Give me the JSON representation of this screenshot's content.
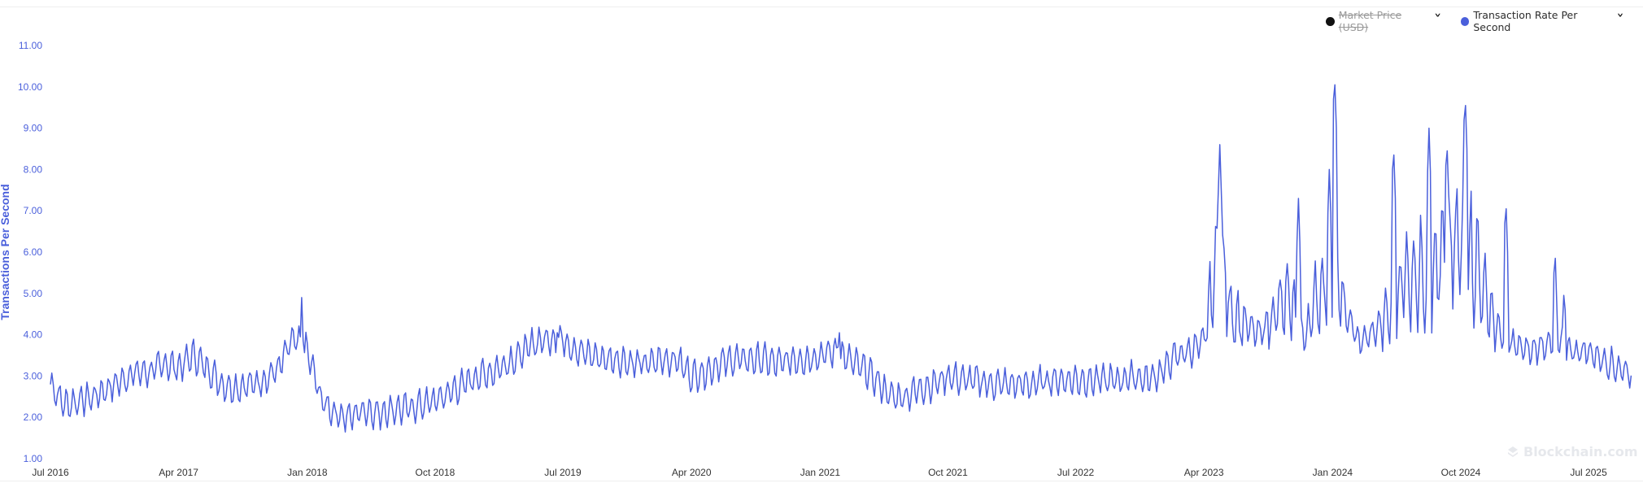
{
  "legend": {
    "items": [
      {
        "label": "Market Price (USD)",
        "color": "#111111",
        "hidden": true
      },
      {
        "label": "Transaction Rate Per Second",
        "color": "#4a5fdb",
        "hidden": false
      }
    ]
  },
  "watermark": "Blockchain.com",
  "chart_data": {
    "type": "line",
    "ylabel": "Transactions Per Second",
    "xlabel": "",
    "ylim": [
      1.0,
      11.0
    ],
    "yticks": [
      "1.00",
      "2.00",
      "3.00",
      "4.00",
      "5.00",
      "6.00",
      "7.00",
      "8.00",
      "9.00",
      "10.00",
      "11.00"
    ],
    "xlim": [
      "2016-07-01",
      "2025-10-01"
    ],
    "xticks": [
      "Jul 2016",
      "Apr 2017",
      "Jan 2018",
      "Oct 2018",
      "Jul 2019",
      "Apr 2020",
      "Jan 2021",
      "Oct 2021",
      "Jul 2022",
      "Apr 2023",
      "Jan 2024",
      "Oct 2024",
      "Jul 2025"
    ],
    "grid": false,
    "legend_position": "top-right",
    "series": [
      {
        "name": "Transaction Rate Per Second",
        "color": "#4a5fdb",
        "points": [
          [
            "2016-07-01",
            2.8
          ],
          [
            "2016-08-01",
            2.3
          ],
          [
            "2016-09-01",
            2.4
          ],
          [
            "2016-10-01",
            2.5
          ],
          [
            "2016-11-01",
            2.7
          ],
          [
            "2016-12-01",
            2.9
          ],
          [
            "2017-01-01",
            3.1
          ],
          [
            "2017-02-01",
            3.1
          ],
          [
            "2017-03-01",
            3.3
          ],
          [
            "2017-04-01",
            3.2
          ],
          [
            "2017-05-01",
            3.5
          ],
          [
            "2017-06-01",
            3.2
          ],
          [
            "2017-07-01",
            2.8
          ],
          [
            "2017-08-01",
            2.7
          ],
          [
            "2017-09-01",
            2.8
          ],
          [
            "2017-10-01",
            2.9
          ],
          [
            "2017-11-01",
            3.2
          ],
          [
            "2017-12-01",
            3.9
          ],
          [
            "2018-01-01",
            3.6
          ],
          [
            "2018-02-01",
            2.4
          ],
          [
            "2018-03-01",
            2.1
          ],
          [
            "2018-04-01",
            2.0
          ],
          [
            "2018-05-01",
            2.2
          ],
          [
            "2018-06-01",
            2.1
          ],
          [
            "2018-07-01",
            2.2
          ],
          [
            "2018-08-01",
            2.2
          ],
          [
            "2018-09-01",
            2.3
          ],
          [
            "2018-10-01",
            2.4
          ],
          [
            "2018-11-01",
            2.6
          ],
          [
            "2018-12-01",
            2.8
          ],
          [
            "2019-01-01",
            3.0
          ],
          [
            "2019-02-01",
            3.1
          ],
          [
            "2019-03-01",
            3.3
          ],
          [
            "2019-04-01",
            3.5
          ],
          [
            "2019-05-01",
            3.8
          ],
          [
            "2019-06-01",
            3.9
          ],
          [
            "2019-07-01",
            3.9
          ],
          [
            "2019-08-01",
            3.6
          ],
          [
            "2019-09-01",
            3.5
          ],
          [
            "2019-10-01",
            3.4
          ],
          [
            "2019-11-01",
            3.4
          ],
          [
            "2019-12-01",
            3.3
          ],
          [
            "2020-01-01",
            3.3
          ],
          [
            "2020-02-01",
            3.4
          ],
          [
            "2020-03-01",
            3.4
          ],
          [
            "2020-04-01",
            3.0
          ],
          [
            "2020-05-01",
            3.1
          ],
          [
            "2020-06-01",
            3.3
          ],
          [
            "2020-07-01",
            3.4
          ],
          [
            "2020-08-01",
            3.4
          ],
          [
            "2020-09-01",
            3.4
          ],
          [
            "2020-10-01",
            3.3
          ],
          [
            "2020-11-01",
            3.4
          ],
          [
            "2020-12-01",
            3.4
          ],
          [
            "2021-01-01",
            3.5
          ],
          [
            "2021-02-01",
            3.6
          ],
          [
            "2021-03-01",
            3.4
          ],
          [
            "2021-04-01",
            3.2
          ],
          [
            "2021-05-01",
            2.9
          ],
          [
            "2021-06-01",
            2.5
          ],
          [
            "2021-07-01",
            2.5
          ],
          [
            "2021-08-01",
            2.7
          ],
          [
            "2021-09-01",
            2.8
          ],
          [
            "2021-10-01",
            3.0
          ],
          [
            "2021-11-01",
            2.9
          ],
          [
            "2021-12-01",
            2.9
          ],
          [
            "2022-01-01",
            2.8
          ],
          [
            "2022-02-01",
            2.8
          ],
          [
            "2022-03-01",
            2.8
          ],
          [
            "2022-04-01",
            2.8
          ],
          [
            "2022-05-01",
            2.9
          ],
          [
            "2022-06-01",
            2.9
          ],
          [
            "2022-07-01",
            2.9
          ],
          [
            "2022-08-01",
            2.9
          ],
          [
            "2022-09-01",
            2.9
          ],
          [
            "2022-10-01",
            2.9
          ],
          [
            "2022-11-01",
            3.0
          ],
          [
            "2022-12-01",
            2.9
          ],
          [
            "2023-01-01",
            3.1
          ],
          [
            "2023-02-01",
            3.5
          ],
          [
            "2023-03-01",
            3.6
          ],
          [
            "2023-04-01",
            3.8
          ],
          [
            "2023-05-01",
            6.0
          ],
          [
            "2023-06-01",
            4.5
          ],
          [
            "2023-07-01",
            4.2
          ],
          [
            "2023-08-01",
            4.0
          ],
          [
            "2023-09-01",
            4.6
          ],
          [
            "2023-10-01",
            4.8
          ],
          [
            "2023-11-01",
            3.9
          ],
          [
            "2023-12-01",
            5.0
          ],
          [
            "2024-01-01",
            5.6
          ],
          [
            "2024-02-01",
            4.4
          ],
          [
            "2024-03-01",
            3.8
          ],
          [
            "2024-04-01",
            4.1
          ],
          [
            "2024-05-01",
            4.5
          ],
          [
            "2024-06-01",
            5.4
          ],
          [
            "2024-07-01",
            5.5
          ],
          [
            "2024-08-01",
            5.4
          ],
          [
            "2024-09-01",
            5.9
          ],
          [
            "2024-10-01",
            6.2
          ],
          [
            "2024-11-01",
            5.8
          ],
          [
            "2024-12-01",
            4.6
          ],
          [
            "2025-01-01",
            3.9
          ],
          [
            "2025-02-01",
            3.7
          ],
          [
            "2025-03-01",
            3.6
          ],
          [
            "2025-04-01",
            3.8
          ],
          [
            "2025-05-01",
            3.8
          ],
          [
            "2025-06-01",
            3.6
          ],
          [
            "2025-07-01",
            3.6
          ],
          [
            "2025-08-01",
            3.4
          ],
          [
            "2025-09-01",
            3.2
          ],
          [
            "2025-10-01",
            3.1
          ]
        ],
        "peaks": [
          [
            "2017-12-20",
            4.9
          ],
          [
            "2019-06-20",
            4.4
          ],
          [
            "2021-02-10",
            4.4
          ],
          [
            "2023-05-05",
            8.6
          ],
          [
            "2023-10-20",
            7.3
          ],
          [
            "2023-12-25",
            8.0
          ],
          [
            "2024-01-05",
            10.4
          ],
          [
            "2024-05-10",
            8.7
          ],
          [
            "2024-07-25",
            9.0
          ],
          [
            "2024-09-01",
            8.8
          ],
          [
            "2024-10-10",
            9.9
          ],
          [
            "2025-01-05",
            7.4
          ],
          [
            "2025-04-20",
            6.2
          ],
          [
            "2025-05-10",
            5.3
          ]
        ]
      }
    ]
  }
}
